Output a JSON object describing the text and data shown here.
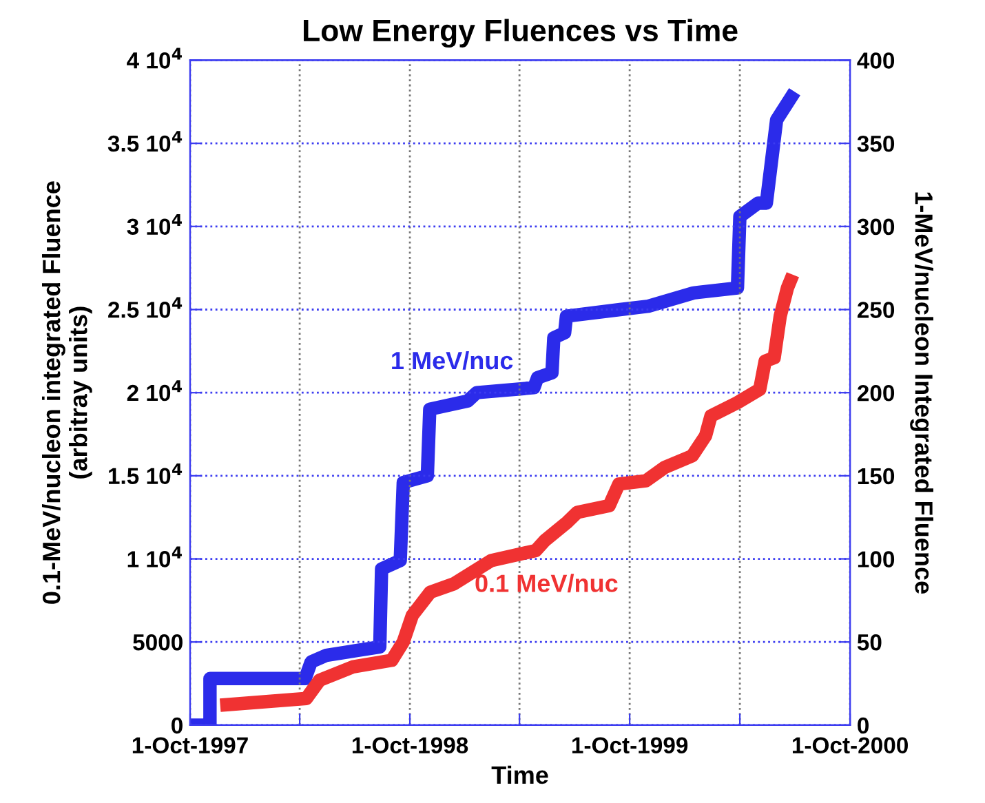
{
  "chart_data": {
    "type": "line",
    "title": "Low Energy Fluences vs Time",
    "xlabel": "Time",
    "ylabel": "0.1-MeV/nucleon integrated Fluence\n(arbitray units)",
    "y2label": "1-MeV/nucleon Integrated Fluence",
    "xlim": [
      "1997-10-01",
      "2000-10-01"
    ],
    "xticks": [
      {
        "value": "1997-10-01",
        "label": "1-Oct-1997"
      },
      {
        "value": "1998-04-01",
        "label": null
      },
      {
        "value": "1998-10-01",
        "label": "1-Oct-1998"
      },
      {
        "value": "1999-04-01",
        "label": null
      },
      {
        "value": "1999-10-01",
        "label": "1-Oct-1999"
      },
      {
        "value": "2000-04-01",
        "label": null
      },
      {
        "value": "2000-10-01",
        "label": "1-Oct-2000"
      }
    ],
    "ylim": [
      0,
      40000
    ],
    "yticks": [
      0,
      5000,
      {
        "value": 10000,
        "label": "1 10$^{4}$"
      },
      {
        "value": 15000,
        "label": "1.5 10$^{4}$"
      },
      {
        "value": 20000,
        "label": "2 10$^{4}$"
      },
      {
        "value": 25000,
        "label": "2.5 10$^{4}$"
      },
      {
        "value": 30000,
        "label": "3 10$^{4}$"
      },
      {
        "value": 35000,
        "label": "3.5 10$^{4}$"
      },
      {
        "value": 40000,
        "label": "4 10$^{4}$"
      }
    ],
    "y2lim": [
      0,
      400
    ],
    "y2ticks": [
      0,
      50,
      100,
      150,
      200,
      250,
      300,
      350,
      400
    ],
    "grid": true,
    "legend": false,
    "marker": "none",
    "line_style": "solid",
    "series": [
      {
        "name": "1 MeV/nuc",
        "color": "#2b2bea",
        "axis": "y2",
        "x": [
          "1997-10-01",
          "1997-11-03",
          "1997-11-03",
          "1998-04-10",
          "1998-04-20",
          "1998-05-15",
          "1998-08-12",
          "1998-08-15",
          "1998-09-15",
          "1998-09-20",
          "1998-10-30",
          "1998-11-03",
          "1999-01-05",
          "1999-01-20",
          "1999-04-25",
          "1999-05-01",
          "1999-05-25",
          "1999-05-28",
          "1999-06-15",
          "1999-06-18",
          "1999-09-15",
          "1999-11-01",
          "2000-01-15",
          "2000-03-28",
          "2000-04-01",
          "2000-05-01",
          "2000-05-15",
          "2000-06-01",
          "2000-07-01"
        ],
        "values": [
          0,
          0,
          28,
          28,
          38,
          42,
          47,
          94,
          99,
          146,
          150,
          190,
          195,
          200,
          203,
          209,
          212,
          233,
          236,
          246,
          250,
          252,
          260,
          263,
          306,
          314,
          314,
          364,
          381
        ]
      },
      {
        "name": "0.1 MeV/nuc",
        "color": "#f03232",
        "x": [
          "1997-11-20",
          "1998-04-12",
          "1998-05-04",
          "1998-06-28",
          "1998-09-01",
          "1998-09-20",
          "1998-10-05",
          "1998-11-04",
          "1998-12-13",
          "1999-02-13",
          "1999-04-28",
          "1999-05-13",
          "1999-06-19",
          "1999-07-06",
          "1999-08-28",
          "1999-09-13",
          "1999-10-28",
          "1999-11-28",
          "2000-01-13",
          "2000-02-04",
          "2000-02-13",
          "2000-03-28",
          "2000-05-04",
          "2000-05-13",
          "2000-05-28",
          "2000-06-07",
          "2000-06-19",
          "2000-06-28"
        ],
        "values": [
          1200,
          1600,
          2700,
          3500,
          3900,
          5000,
          6600,
          8000,
          8500,
          9900,
          10500,
          11100,
          12200,
          12800,
          13200,
          14500,
          14700,
          15500,
          16200,
          17400,
          18600,
          19400,
          20200,
          21900,
          22100,
          24600,
          26300,
          27100
        ]
      }
    ]
  }
}
